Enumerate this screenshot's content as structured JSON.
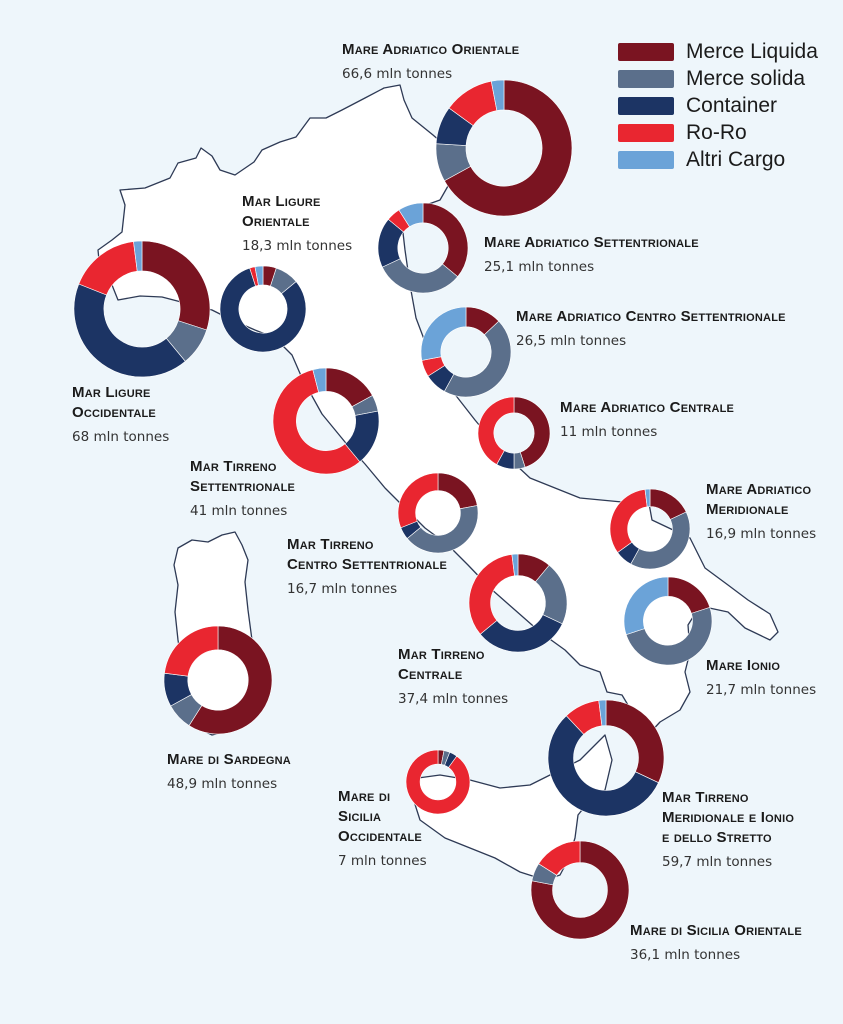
{
  "categories": [
    {
      "name": "Merce Liquida",
      "color": "#7a1421"
    },
    {
      "name": "Merce solida",
      "color": "#5b6f8b"
    },
    {
      "name": "Container",
      "color": "#1c3464"
    },
    {
      "name": "Ro-Ro",
      "color": "#e92630"
    },
    {
      "name": "Altri Cargo",
      "color": "#6ba3d8"
    }
  ],
  "regions": [
    {
      "id": "adriatico-orientale",
      "name_lines": [
        "Mare Adriatico Orientale"
      ],
      "tonnage": "66,6 mln tonnes",
      "shares": [
        67,
        9,
        9,
        12,
        3
      ]
    },
    {
      "id": "ligure-orientale",
      "name_lines": [
        "Mar Ligure",
        "Orientale"
      ],
      "tonnage": "18,3 mln tonnes",
      "shares": [
        5,
        9,
        81,
        2,
        3
      ]
    },
    {
      "id": "adriatico-settentrionale",
      "name_lines": [
        "Mare Adriatico Settentrionale"
      ],
      "tonnage": "25,1 mln tonnes",
      "shares": [
        36,
        32,
        18,
        5,
        9
      ]
    },
    {
      "id": "ligure-occidentale",
      "name_lines": [
        "Mar Ligure",
        "Occidentale"
      ],
      "tonnage": "68 mln tonnes",
      "shares": [
        30,
        9,
        42,
        17,
        2
      ]
    },
    {
      "id": "adriatico-centro-settentrionale",
      "name_lines": [
        "Mare Adriatico Centro Settentrionale"
      ],
      "tonnage": "26,5 mln tonnes",
      "shares": [
        13,
        45,
        8,
        6,
        28
      ]
    },
    {
      "id": "adriatico-centrale",
      "name_lines": [
        "Mare Adriatico Centrale"
      ],
      "tonnage": "11 mln tonnes",
      "shares": [
        45,
        5,
        8,
        42,
        0
      ]
    },
    {
      "id": "tirreno-settentrionale",
      "name_lines": [
        "Mar Tirreno",
        "Settentrionale"
      ],
      "tonnage": "41 mln tonnes",
      "shares": [
        17,
        5,
        17,
        57,
        4
      ]
    },
    {
      "id": "tirreno-centro-settentrionale",
      "name_lines": [
        "Mar Tirreno",
        "Centro Settentrionale"
      ],
      "tonnage": "16,7 mln tonnes",
      "shares": [
        22,
        42,
        5,
        31,
        0
      ]
    },
    {
      "id": "adriatico-meridionale",
      "name_lines": [
        "Mare Adriatico",
        "Meridionale"
      ],
      "tonnage": "16,9 mln tonnes",
      "shares": [
        18,
        40,
        7,
        33,
        2
      ]
    },
    {
      "id": "tirreno-centrale",
      "name_lines": [
        "Mar Tirreno",
        "Centrale"
      ],
      "tonnage": "37,4 mln tonnes",
      "shares": [
        11,
        21,
        32,
        34,
        2
      ]
    },
    {
      "id": "ionio",
      "name_lines": [
        "Mare Ionio"
      ],
      "tonnage": "21,7 mln tonnes",
      "shares": [
        20,
        50,
        0,
        0,
        30
      ]
    },
    {
      "id": "sardegna",
      "name_lines": [
        "Mare di Sardegna"
      ],
      "tonnage": "48,9 mln tonnes",
      "shares": [
        59,
        8,
        10,
        23,
        0
      ]
    },
    {
      "id": "tirreno-meridionale-ionio-stretto",
      "name_lines": [
        "Mar Tirreno",
        "Meridionale e Ionio",
        "e dello Stretto"
      ],
      "tonnage": "59,7 mln tonnes",
      "shares": [
        32,
        0,
        56,
        10,
        2
      ]
    },
    {
      "id": "sicilia-occidentale",
      "name_lines": [
        "Mare di",
        "Sicilia",
        "Occidentale"
      ],
      "tonnage": "7 mln tonnes",
      "shares": [
        3,
        3,
        4,
        90,
        0
      ]
    },
    {
      "id": "sicilia-orientale",
      "name_lines": [
        "Mare di Sicilia Orientale"
      ],
      "tonnage": "36,1 mln tonnes",
      "shares": [
        78,
        6,
        0,
        16,
        0
      ]
    }
  ]
}
